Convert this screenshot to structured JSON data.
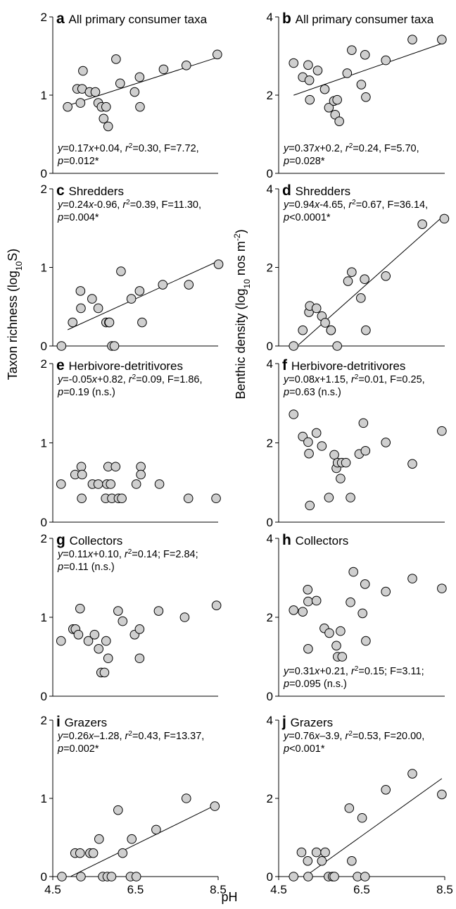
{
  "figure": {
    "ylabel_left": "Taxon richness (log10S)",
    "ylabel_right": "Benthic density (log10 nos m-2)",
    "xlabel": "pH"
  },
  "chart_data": [
    {
      "type": "scatter",
      "panel": "a",
      "title": "All primary consumer taxa",
      "xlim": [
        4.5,
        8.5
      ],
      "xticks": [
        "4.5",
        "6.5",
        "8.5"
      ],
      "ylim": [
        0,
        2
      ],
      "yticks": [
        "0",
        "1",
        "2"
      ],
      "stats": [
        "y=0.17x+0.04, r2=0.30, F=7.72,",
        "p=0.012*"
      ],
      "stats_position": "bottom-left",
      "x": [
        4.86,
        5.09,
        5.17,
        5.23,
        5.21,
        5.39,
        5.53,
        5.6,
        5.68,
        5.73,
        5.79,
        5.84,
        6.03,
        6.13,
        6.48,
        6.6,
        6.61,
        7.18,
        7.73,
        8.48
      ],
      "y": [
        0.85,
        1.08,
        0.9,
        1.31,
        1.08,
        1.04,
        1.04,
        0.9,
        0.85,
        0.7,
        0.85,
        0.6,
        1.46,
        1.15,
        1.04,
        1.23,
        0.85,
        1.33,
        1.38,
        1.52
      ],
      "fit": {
        "slope": 0.17,
        "intercept": 0.04,
        "x_range": [
          4.86,
          8.48
        ]
      }
    },
    {
      "type": "scatter",
      "panel": "b",
      "title": "All primary consumer taxa",
      "xlim": [
        4.5,
        8.5
      ],
      "xticks": [
        "4.5",
        "6.5",
        "8.5"
      ],
      "ylim": [
        0,
        4
      ],
      "yticks": [
        "0",
        "2",
        "4"
      ],
      "stats": [
        "y=0.37x+0.2, r2=0.24, F=5.70,",
        "p=0.028*"
      ],
      "stats_position": "bottom-left",
      "x": [
        4.86,
        5.08,
        5.21,
        5.24,
        5.25,
        5.44,
        5.61,
        5.71,
        5.83,
        5.86,
        5.91,
        5.96,
        6.15,
        6.26,
        6.49,
        6.58,
        6.6,
        7.08,
        7.72,
        8.43
      ],
      "y": [
        2.82,
        2.46,
        2.77,
        2.38,
        1.88,
        2.63,
        2.15,
        1.68,
        1.85,
        1.5,
        1.88,
        1.33,
        2.56,
        3.15,
        2.27,
        3.03,
        1.95,
        2.89,
        3.42,
        3.42
      ],
      "fit": {
        "slope": 0.37,
        "intercept": 0.2,
        "x_range": [
          4.86,
          8.48
        ]
      }
    },
    {
      "type": "scatter",
      "panel": "c",
      "title": "Shredders",
      "xlim": [
        4.5,
        8.5
      ],
      "xticks": [
        "4.5",
        "6.5",
        "8.5"
      ],
      "ylim": [
        0,
        2
      ],
      "yticks": [
        "0",
        "1",
        "2"
      ],
      "stats": [
        "y=0.24x-0.96, r2=0.39, F=11.30,",
        "p=0.004*"
      ],
      "stats_position": "top-left",
      "x": [
        4.71,
        4.98,
        5.17,
        5.18,
        5.45,
        5.6,
        5.79,
        5.86,
        5.87,
        5.93,
        5.99,
        6.15,
        6.4,
        6.6,
        6.66,
        7.16,
        7.79,
        8.51
      ],
      "y": [
        0.0,
        0.3,
        0.7,
        0.48,
        0.6,
        0.48,
        0.3,
        0.3,
        0.3,
        0.0,
        0.0,
        0.95,
        0.6,
        0.7,
        0.3,
        0.78,
        0.78,
        1.04
      ],
      "fit": {
        "slope": 0.24,
        "intercept": -0.96,
        "x_range": [
          4.86,
          8.48
        ]
      }
    },
    {
      "type": "scatter",
      "panel": "d",
      "title": "Shredders",
      "xlim": [
        4.5,
        8.5
      ],
      "xticks": [
        "4.5",
        "6.5",
        "8.5"
      ],
      "ylim": [
        0,
        4
      ],
      "yticks": [
        "0",
        "2",
        "4"
      ],
      "stats": [
        "y=0.94x-4.65, r2=0.67, F=36.14,",
        "p<0.0001*"
      ],
      "stats_position": "top-left",
      "x": [
        4.86,
        5.08,
        5.23,
        5.25,
        5.41,
        5.54,
        5.62,
        5.76,
        5.76,
        5.91,
        6.17,
        6.26,
        6.48,
        6.57,
        6.6,
        7.08,
        7.96,
        8.49
      ],
      "y": [
        0.0,
        0.4,
        0.86,
        1.02,
        0.96,
        0.76,
        0.59,
        0.4,
        0.4,
        0.0,
        1.65,
        1.88,
        1.22,
        1.7,
        0.4,
        1.78,
        3.1,
        3.24
      ],
      "fit": {
        "slope": 0.94,
        "intercept": -4.65,
        "x_range": [
          4.98,
          8.48
        ]
      }
    },
    {
      "type": "scatter",
      "panel": "e",
      "title": "Herbivore-detritivores",
      "xlim": [
        4.5,
        8.5
      ],
      "xticks": [
        "4.5",
        "6.5",
        "8.5"
      ],
      "ylim": [
        0,
        2
      ],
      "yticks": [
        "0",
        "1",
        "2"
      ],
      "stats": [
        "y=-0.05x+0.82, r2=0.09, F=1.86,",
        "p=0.19 (n.s.)"
      ],
      "stats_position": "top-left",
      "x": [
        4.7,
        5.04,
        5.19,
        5.21,
        5.2,
        5.46,
        5.6,
        5.78,
        5.81,
        5.84,
        5.9,
        5.93,
        6.02,
        6.09,
        6.17,
        6.52,
        6.63,
        6.63,
        7.08,
        7.78,
        8.45
      ],
      "y": [
        0.48,
        0.6,
        0.7,
        0.6,
        0.3,
        0.48,
        0.48,
        0.3,
        0.48,
        0.7,
        0.48,
        0.3,
        0.7,
        0.3,
        0.3,
        0.48,
        0.7,
        0.6,
        0.48,
        0.3,
        0.3
      ],
      "fit": null
    },
    {
      "type": "scatter",
      "panel": "f",
      "title": "Herbivore-detritivores",
      "xlim": [
        4.5,
        8.5
      ],
      "xticks": [
        "4.5",
        "6.5",
        "8.5"
      ],
      "ylim": [
        0,
        4
      ],
      "yticks": [
        "0",
        "2",
        "4"
      ],
      "stats": [
        "y=0.08x+1.15, r2=0.01, F=0.25,",
        "p=0.63 (n.s.)"
      ],
      "stats_position": "top-left",
      "x": [
        4.86,
        5.08,
        5.21,
        5.23,
        5.25,
        5.41,
        5.54,
        5.71,
        5.84,
        5.89,
        5.92,
        5.99,
        6.02,
        6.12,
        6.23,
        6.44,
        6.54,
        6.59,
        7.08,
        7.72,
        8.43
      ],
      "y": [
        2.72,
        2.16,
        2.02,
        1.73,
        0.42,
        2.25,
        1.92,
        0.62,
        1.7,
        1.36,
        1.5,
        1.1,
        1.5,
        1.5,
        0.62,
        1.72,
        2.5,
        1.8,
        2.01,
        1.47,
        2.3
      ],
      "fit": null
    },
    {
      "type": "scatter",
      "panel": "g",
      "title": "Collectors",
      "xlim": [
        4.5,
        8.5
      ],
      "xticks": [
        "4.5",
        "6.5",
        "8.5"
      ],
      "ylim": [
        0,
        2
      ],
      "yticks": [
        "0",
        "1",
        "2"
      ],
      "stats": [
        "y=0.11x+0.10, r2=0.14; F=2.84;",
        "p=0.11 (n.s.)"
      ],
      "stats_position": "top-left",
      "x": [
        4.7,
        4.99,
        5.05,
        5.12,
        5.16,
        5.36,
        5.51,
        5.61,
        5.67,
        5.75,
        5.79,
        5.84,
        6.08,
        6.19,
        6.48,
        6.6,
        6.6,
        7.06,
        7.69,
        8.46
      ],
      "y": [
        0.7,
        0.85,
        0.85,
        0.78,
        1.11,
        0.7,
        0.78,
        0.6,
        0.3,
        0.3,
        0.7,
        0.48,
        1.08,
        0.95,
        0.78,
        0.85,
        0.48,
        1.08,
        1.0,
        1.15
      ],
      "fit": null
    },
    {
      "type": "scatter",
      "panel": "h",
      "title": "Collectors",
      "xlim": [
        4.5,
        8.5
      ],
      "xticks": [
        "4.5",
        "6.5",
        "8.5"
      ],
      "ylim": [
        0,
        4
      ],
      "yticks": [
        "0",
        "2",
        "4"
      ],
      "stats": [
        "y=0.31x+0.21, r2=0.15; F=3.11;",
        "p=0.095 (n.s.)"
      ],
      "stats_position": "bottom-left",
      "x": [
        4.86,
        5.08,
        5.2,
        5.21,
        5.21,
        5.41,
        5.6,
        5.72,
        5.89,
        5.92,
        5.99,
        6.03,
        6.23,
        6.3,
        6.52,
        6.58,
        6.6,
        7.08,
        7.72,
        8.43
      ],
      "y": [
        2.18,
        2.14,
        2.7,
        2.4,
        1.2,
        2.42,
        1.72,
        1.6,
        1.28,
        1.0,
        1.65,
        1.0,
        2.38,
        3.15,
        2.1,
        2.84,
        1.4,
        2.65,
        2.98,
        2.73
      ],
      "fit": null
    },
    {
      "type": "scatter",
      "panel": "i",
      "title": "Grazers",
      "xlim": [
        4.5,
        8.5
      ],
      "xticks": [
        "4.5",
        "6.5",
        "8.5"
      ],
      "ylim": [
        0,
        2
      ],
      "yticks": [
        "0",
        "1",
        "2"
      ],
      "stats": [
        "y=0.26x–1.28, r2=0.43, F=13.37,",
        "p=0.002*"
      ],
      "stats_position": "top-left",
      "x": [
        4.72,
        5.04,
        5.16,
        5.18,
        5.4,
        5.48,
        5.62,
        5.71,
        5.82,
        5.92,
        6.08,
        6.19,
        6.38,
        6.41,
        6.52,
        7.0,
        7.73,
        8.42
      ],
      "y": [
        0.0,
        0.3,
        0.3,
        0.0,
        0.3,
        0.3,
        0.48,
        0.0,
        0.0,
        0.0,
        0.85,
        0.3,
        0.0,
        0.48,
        0.0,
        0.6,
        1.0,
        0.9
      ],
      "fit": {
        "slope": 0.26,
        "intercept": -1.28,
        "x_range": [
          4.94,
          8.42
        ]
      }
    },
    {
      "type": "scatter",
      "panel": "j",
      "title": "Grazers",
      "xlim": [
        4.5,
        8.5
      ],
      "xticks": [
        "4.5",
        "6.5",
        "8.5"
      ],
      "ylim": [
        0,
        4
      ],
      "yticks": [
        "0",
        "2",
        "4"
      ],
      "stats": [
        "y=0.76x–3.9, r2=0.53, F=20.00,",
        "p<0.001*"
      ],
      "stats_position": "top-left",
      "x": [
        4.86,
        5.05,
        5.2,
        5.21,
        5.41,
        5.54,
        5.62,
        5.7,
        5.8,
        5.84,
        6.2,
        6.26,
        6.4,
        6.51,
        6.58,
        7.08,
        7.72,
        8.43
      ],
      "y": [
        0.0,
        0.62,
        0.4,
        0.0,
        0.62,
        0.4,
        0.62,
        0.0,
        0.0,
        0.0,
        1.75,
        0.4,
        0.0,
        1.5,
        0.0,
        2.22,
        2.63,
        2.1
      ],
      "fit": {
        "slope": 0.76,
        "intercept": -3.9,
        "x_range": [
          5.22,
          8.43
        ]
      }
    }
  ]
}
